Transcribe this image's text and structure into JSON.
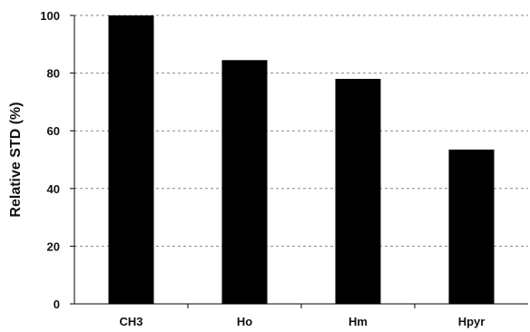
{
  "chart_data": {
    "type": "bar",
    "title": "",
    "xlabel": "",
    "ylabel": "Relative STD (%)",
    "categories": [
      "CH3",
      "Ho",
      "Hm",
      "Hpyr"
    ],
    "values": [
      100,
      84.5,
      78,
      53.5
    ],
    "ylim": [
      0,
      100
    ],
    "yticks": [
      "0",
      "20",
      "40",
      "60",
      "80",
      "100"
    ],
    "grid": "horizontal dashed",
    "bar_color": "#000000",
    "grid_color": "#888888"
  }
}
